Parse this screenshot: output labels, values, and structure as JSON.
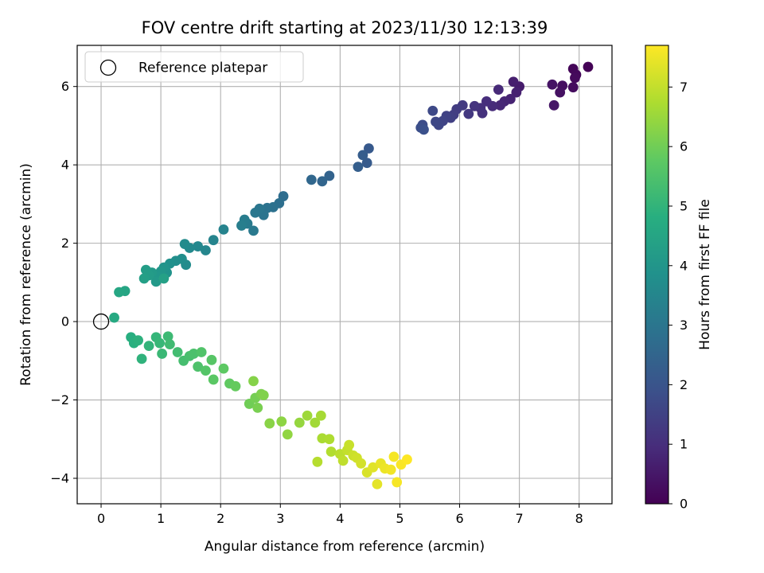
{
  "chart_data": {
    "type": "scatter",
    "title": "FOV centre drift starting at 2023/11/30 12:13:39",
    "xlabel": "Angular distance from reference (arcmin)",
    "ylabel": "Rotation from reference (arcmin)",
    "xlim": [
      -0.4,
      8.55
    ],
    "ylim": [
      -4.65,
      7.05
    ],
    "xticks": [
      0,
      1,
      2,
      3,
      4,
      5,
      6,
      7,
      8
    ],
    "yticks": [
      -4,
      -2,
      0,
      2,
      4,
      6
    ],
    "grid": true,
    "legend": {
      "placement": "top-left",
      "entries": [
        "Reference platepar"
      ]
    },
    "reference_point": {
      "x": 0,
      "y": 0
    },
    "colorbar": {
      "label": "Hours from first FF file",
      "colormap": "viridis",
      "range": [
        0,
        7.7
      ],
      "ticks": [
        0,
        1,
        2,
        3,
        4,
        5,
        6,
        7
      ]
    },
    "series": [
      {
        "points": [
          [
            8.15,
            6.5,
            0.05
          ],
          [
            7.9,
            6.45,
            0.1
          ],
          [
            7.95,
            6.3,
            0.15
          ],
          [
            7.93,
            6.22,
            0.2
          ],
          [
            7.9,
            5.98,
            0.25
          ],
          [
            7.72,
            6.02,
            0.3
          ],
          [
            7.68,
            5.85,
            0.35
          ],
          [
            7.55,
            6.05,
            0.4
          ],
          [
            7.58,
            5.52,
            0.45
          ],
          [
            7.0,
            6.0,
            0.6
          ],
          [
            6.9,
            6.12,
            0.65
          ],
          [
            6.95,
            5.85,
            0.7
          ],
          [
            6.85,
            5.68,
            0.75
          ],
          [
            6.75,
            5.62,
            0.8
          ],
          [
            6.68,
            5.52,
            0.85
          ],
          [
            6.65,
            5.92,
            0.9
          ],
          [
            6.55,
            5.5,
            0.95
          ],
          [
            6.45,
            5.62,
            1.0
          ],
          [
            6.35,
            5.45,
            1.05
          ],
          [
            6.38,
            5.32,
            1.1
          ],
          [
            6.25,
            5.5,
            1.15
          ],
          [
            6.15,
            5.3,
            1.25
          ],
          [
            6.05,
            5.52,
            1.3
          ],
          [
            5.95,
            5.42,
            1.35
          ],
          [
            5.9,
            5.28,
            1.4
          ],
          [
            5.85,
            5.2,
            1.45
          ],
          [
            5.78,
            5.25,
            1.5
          ],
          [
            5.72,
            5.12,
            1.55
          ],
          [
            5.65,
            5.02,
            1.6
          ],
          [
            5.6,
            5.1,
            1.65
          ],
          [
            5.55,
            5.38,
            1.7
          ],
          [
            5.38,
            5.02,
            1.8
          ],
          [
            5.35,
            4.95,
            1.85
          ],
          [
            5.4,
            4.9,
            1.9
          ],
          [
            4.48,
            4.42,
            2.15
          ],
          [
            4.45,
            4.05,
            2.2
          ],
          [
            4.38,
            4.25,
            2.25
          ],
          [
            4.3,
            3.95,
            2.3
          ],
          [
            3.82,
            3.72,
            2.45
          ],
          [
            3.7,
            3.58,
            2.5
          ],
          [
            3.52,
            3.62,
            2.55
          ],
          [
            3.05,
            3.2,
            2.75
          ],
          [
            2.98,
            3.02,
            2.8
          ],
          [
            2.88,
            2.92,
            2.85
          ],
          [
            2.78,
            2.9,
            2.9
          ],
          [
            2.72,
            2.72,
            2.95
          ],
          [
            2.65,
            2.88,
            3.0
          ],
          [
            2.58,
            2.78,
            3.05
          ],
          [
            2.55,
            2.32,
            3.1
          ],
          [
            2.45,
            2.5,
            3.15
          ],
          [
            2.4,
            2.6,
            3.2
          ],
          [
            2.35,
            2.45,
            3.25
          ],
          [
            2.05,
            2.35,
            3.4
          ],
          [
            1.88,
            2.08,
            3.45
          ],
          [
            1.75,
            1.82,
            3.5
          ],
          [
            1.62,
            1.92,
            3.55
          ],
          [
            1.48,
            1.88,
            3.6
          ],
          [
            1.4,
            1.98,
            3.65
          ],
          [
            1.42,
            1.45,
            3.7
          ],
          [
            1.35,
            1.6,
            3.75
          ],
          [
            1.25,
            1.55,
            3.8
          ],
          [
            1.15,
            1.48,
            3.85
          ],
          [
            1.1,
            1.25,
            3.9
          ],
          [
            1.05,
            1.38,
            3.95
          ],
          [
            1.0,
            1.28,
            4.0
          ],
          [
            0.95,
            1.15,
            4.05
          ],
          [
            0.92,
            1.02,
            4.1
          ],
          [
            0.85,
            1.25,
            4.15
          ],
          [
            0.8,
            1.18,
            4.2
          ],
          [
            0.75,
            1.32,
            4.25
          ],
          [
            0.72,
            1.1,
            4.3
          ],
          [
            1.05,
            1.1,
            4.35
          ],
          [
            0.4,
            0.78,
            4.5
          ],
          [
            0.3,
            0.75,
            4.55
          ],
          [
            0.22,
            0.1,
            4.65
          ],
          [
            0.5,
            -0.4,
            4.8
          ],
          [
            0.55,
            -0.55,
            4.85
          ],
          [
            0.62,
            -0.48,
            4.9
          ],
          [
            0.68,
            -0.95,
            4.95
          ],
          [
            0.8,
            -0.62,
            5.0
          ],
          [
            0.92,
            -0.4,
            5.05
          ],
          [
            0.98,
            -0.55,
            5.1
          ],
          [
            1.02,
            -0.82,
            5.15
          ],
          [
            1.12,
            -0.38,
            5.2
          ],
          [
            1.15,
            -0.58,
            5.25
          ],
          [
            1.28,
            -0.78,
            5.3
          ],
          [
            1.38,
            -1.0,
            5.35
          ],
          [
            1.48,
            -0.88,
            5.4
          ],
          [
            1.55,
            -0.82,
            5.45
          ],
          [
            1.62,
            -1.15,
            5.5
          ],
          [
            1.68,
            -0.78,
            5.55
          ],
          [
            1.75,
            -1.25,
            5.6
          ],
          [
            1.85,
            -0.98,
            5.65
          ],
          [
            1.88,
            -1.48,
            5.7
          ],
          [
            2.05,
            -1.2,
            5.75
          ],
          [
            2.15,
            -1.58,
            5.8
          ],
          [
            2.25,
            -1.65,
            5.85
          ],
          [
            2.48,
            -2.1,
            6.0
          ],
          [
            2.58,
            -1.95,
            6.05
          ],
          [
            2.62,
            -2.2,
            6.1
          ],
          [
            2.68,
            -1.85,
            6.15
          ],
          [
            2.72,
            -1.88,
            6.2
          ],
          [
            2.55,
            -1.52,
            6.25
          ],
          [
            2.82,
            -2.6,
            6.3
          ],
          [
            3.02,
            -2.55,
            6.35
          ],
          [
            3.12,
            -2.88,
            6.4
          ],
          [
            3.32,
            -2.58,
            6.45
          ],
          [
            3.45,
            -2.4,
            6.55
          ],
          [
            3.58,
            -2.58,
            6.6
          ],
          [
            3.68,
            -2.4,
            6.65
          ],
          [
            3.7,
            -2.98,
            6.7
          ],
          [
            3.82,
            -3.0,
            6.75
          ],
          [
            3.85,
            -3.32,
            6.8
          ],
          [
            3.62,
            -3.58,
            6.85
          ],
          [
            4.0,
            -3.38,
            6.9
          ],
          [
            4.05,
            -3.55,
            6.95
          ],
          [
            4.12,
            -3.28,
            7.0
          ],
          [
            4.15,
            -3.15,
            7.05
          ],
          [
            4.22,
            -3.42,
            7.1
          ],
          [
            4.28,
            -3.48,
            7.15
          ],
          [
            4.35,
            -3.62,
            7.2
          ],
          [
            4.45,
            -3.85,
            7.25
          ],
          [
            4.55,
            -3.72,
            7.35
          ],
          [
            4.62,
            -4.15,
            7.4
          ],
          [
            4.68,
            -3.62,
            7.45
          ],
          [
            4.75,
            -3.75,
            7.5
          ],
          [
            4.85,
            -3.78,
            7.55
          ],
          [
            4.9,
            -3.45,
            7.6
          ],
          [
            4.95,
            -4.1,
            7.62
          ],
          [
            5.02,
            -3.65,
            7.65
          ],
          [
            5.12,
            -3.52,
            7.7
          ]
        ]
      }
    ]
  }
}
